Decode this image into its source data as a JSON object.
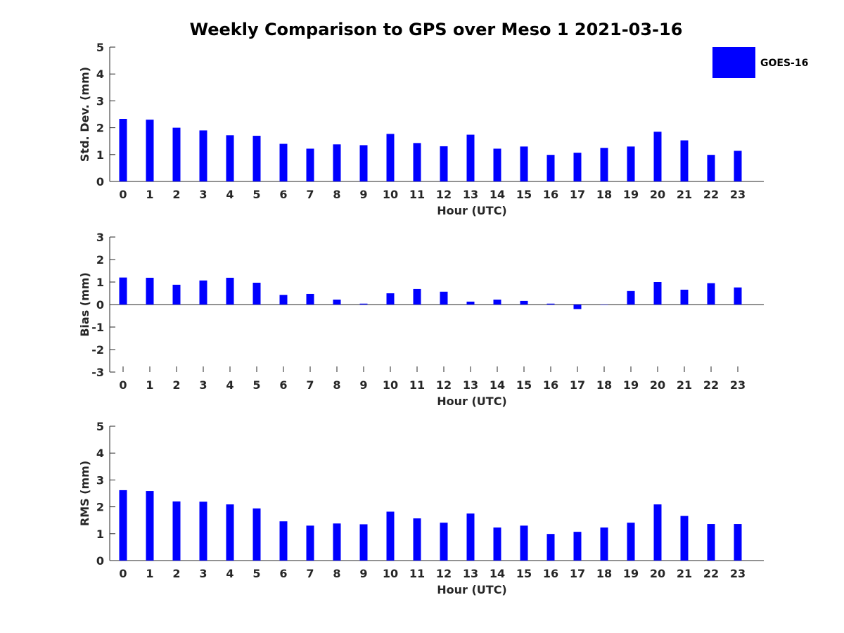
{
  "title": "Weekly Comparison to GPS over Meso 1 2021-03-16",
  "colors": {
    "bar": "#0000ff",
    "axis": "#262626"
  },
  "legend": {
    "label": "GOES-16",
    "placement": "top-right"
  },
  "chart_data": [
    {
      "type": "bar",
      "ylabel": "Std. Dev. (mm)",
      "xlabel": "Hour (UTC)",
      "ylim": [
        0,
        5
      ],
      "yticks": [
        "0",
        "1",
        "2",
        "3",
        "4",
        "5"
      ],
      "categories": [
        "0",
        "1",
        "2",
        "3",
        "4",
        "5",
        "6",
        "7",
        "8",
        "9",
        "10",
        "11",
        "12",
        "13",
        "14",
        "15",
        "16",
        "17",
        "18",
        "19",
        "20",
        "21",
        "22",
        "23"
      ],
      "series": [
        {
          "name": "GOES-16",
          "values": [
            2.33,
            2.3,
            2.0,
            1.9,
            1.72,
            1.7,
            1.4,
            1.22,
            1.38,
            1.35,
            1.77,
            1.43,
            1.31,
            1.74,
            1.22,
            1.3,
            0.99,
            1.07,
            1.25,
            1.3,
            1.85,
            1.53,
            0.99,
            1.14
          ]
        }
      ]
    },
    {
      "type": "bar",
      "ylabel": "Bias (mm)",
      "xlabel": "Hour (UTC)",
      "ylim": [
        -3,
        3
      ],
      "yticks": [
        "-3",
        "-2",
        "-1",
        "0",
        "1",
        "2",
        "3"
      ],
      "categories": [
        "0",
        "1",
        "2",
        "3",
        "4",
        "5",
        "6",
        "7",
        "8",
        "9",
        "10",
        "11",
        "12",
        "13",
        "14",
        "15",
        "16",
        "17",
        "18",
        "19",
        "20",
        "21",
        "22",
        "23"
      ],
      "series": [
        {
          "name": "GOES-16",
          "values": [
            1.2,
            1.19,
            0.88,
            1.07,
            1.19,
            0.97,
            0.43,
            0.47,
            0.22,
            0.04,
            0.5,
            0.69,
            0.57,
            0.13,
            0.22,
            0.16,
            0.04,
            -0.2,
            0.0,
            0.6,
            1.0,
            0.66,
            0.95,
            0.76
          ]
        }
      ]
    },
    {
      "type": "bar",
      "ylabel": "RMS (mm)",
      "xlabel": "Hour (UTC)",
      "ylim": [
        0,
        5
      ],
      "yticks": [
        "0",
        "1",
        "2",
        "3",
        "4",
        "5"
      ],
      "categories": [
        "0",
        "1",
        "2",
        "3",
        "4",
        "5",
        "6",
        "7",
        "8",
        "9",
        "10",
        "11",
        "12",
        "13",
        "14",
        "15",
        "16",
        "17",
        "18",
        "19",
        "20",
        "21",
        "22",
        "23"
      ],
      "series": [
        {
          "name": "GOES-16",
          "values": [
            2.62,
            2.59,
            2.2,
            2.19,
            2.09,
            1.94,
            1.46,
            1.3,
            1.38,
            1.35,
            1.82,
            1.57,
            1.41,
            1.75,
            1.23,
            1.3,
            0.99,
            1.07,
            1.23,
            1.41,
            2.09,
            1.66,
            1.36,
            1.36
          ]
        }
      ]
    }
  ]
}
